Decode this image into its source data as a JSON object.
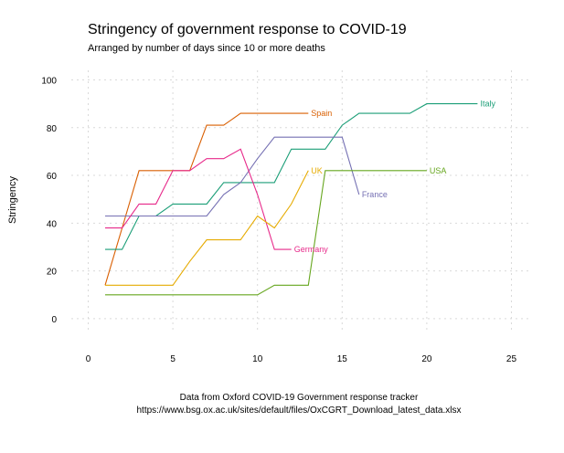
{
  "chart_data": {
    "type": "line",
    "title": "Stringency of government response to COVID-19",
    "subtitle": "Arranged by number of days since 10 or more deaths",
    "xlabel": "",
    "ylabel": "Stringency",
    "caption": [
      "Data from Oxford COVID-19 Government response tracker",
      "https://www.bsg.ox.ac.uk/sites/default/files/OxCGRT_Download_latest_data.xlsx"
    ],
    "xlim": [
      -1,
      26
    ],
    "ylim": [
      -5,
      104
    ],
    "xticks": [
      0,
      5,
      10,
      15,
      20,
      25
    ],
    "yticks": [
      0,
      20,
      40,
      60,
      80,
      100
    ],
    "grid": true,
    "legend": "direct labels at line ends",
    "series": [
      {
        "name": "Spain",
        "color": "#d95f02",
        "x": [
          1,
          2,
          3,
          4,
          5,
          6,
          7,
          8,
          9,
          10,
          11,
          12,
          13
        ],
        "y": [
          14,
          38,
          62,
          62,
          62,
          62,
          81,
          81,
          86,
          86,
          86,
          86,
          86
        ]
      },
      {
        "name": "Italy",
        "color": "#1b9e77",
        "x": [
          1,
          2,
          3,
          4,
          5,
          6,
          7,
          8,
          9,
          10,
          11,
          12,
          13,
          14,
          15,
          16,
          17,
          18,
          19,
          20,
          21,
          22,
          23
        ],
        "y": [
          29,
          29,
          43,
          43,
          48,
          48,
          48,
          57,
          57,
          57,
          57,
          71,
          71,
          71,
          81,
          86,
          86,
          86,
          86,
          90,
          90,
          90,
          90
        ]
      },
      {
        "name": "France",
        "color": "#7570b3",
        "x": [
          1,
          2,
          3,
          4,
          5,
          6,
          7,
          8,
          9,
          10,
          11,
          12,
          13,
          14,
          15,
          16
        ],
        "y": [
          43,
          43,
          43,
          43,
          43,
          43,
          43,
          52,
          57,
          67,
          76,
          76,
          76,
          76,
          76,
          52
        ]
      },
      {
        "name": "Germany",
        "color": "#e7298a",
        "x": [
          1,
          2,
          3,
          4,
          5,
          6,
          7,
          8,
          9,
          10,
          11,
          12
        ],
        "y": [
          38,
          38,
          48,
          48,
          62,
          62,
          67,
          67,
          71,
          52,
          29,
          29
        ]
      },
      {
        "name": "UK",
        "color": "#e6ab02",
        "x": [
          1,
          2,
          3,
          4,
          5,
          6,
          7,
          8,
          9,
          10,
          11,
          12,
          13
        ],
        "y": [
          14,
          14,
          14,
          14,
          14,
          24,
          33,
          33,
          33,
          43,
          38,
          48,
          62
        ]
      },
      {
        "name": "USA",
        "color": "#66a61e",
        "x": [
          1,
          2,
          3,
          4,
          5,
          6,
          7,
          8,
          9,
          10,
          11,
          12,
          13,
          14,
          15,
          16,
          17,
          18,
          19,
          20
        ],
        "y": [
          10,
          10,
          10,
          10,
          10,
          10,
          10,
          10,
          10,
          10,
          14,
          14,
          14,
          62,
          62,
          62,
          62,
          62,
          62,
          62
        ]
      }
    ]
  }
}
